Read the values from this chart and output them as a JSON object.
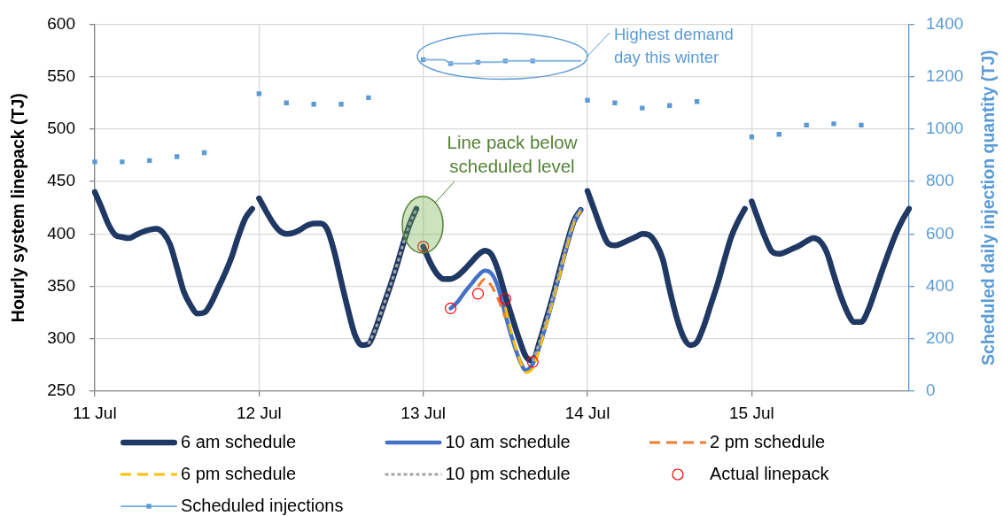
{
  "chart_data": {
    "type": "line",
    "ylabel": "Hourly system linepack (TJ)",
    "y2label": "Scheduled daily injection quantity (TJ)",
    "categories": [
      "11 Jul",
      null,
      null,
      null,
      null,
      null,
      null,
      null,
      null,
      null,
      null,
      null,
      null,
      null,
      null,
      null,
      null,
      null,
      null,
      null,
      null,
      null,
      null,
      null,
      "12 Jul",
      null,
      null,
      null,
      null,
      null,
      null,
      null,
      null,
      null,
      null,
      null,
      null,
      null,
      null,
      null,
      null,
      null,
      null,
      null,
      null,
      null,
      null,
      null,
      "13 Jul",
      null,
      null,
      null,
      null,
      null,
      null,
      null,
      null,
      null,
      null,
      null,
      null,
      null,
      null,
      null,
      null,
      null,
      null,
      null,
      null,
      null,
      null,
      null,
      "14 Jul",
      null,
      null,
      null,
      null,
      null,
      null,
      null,
      null,
      null,
      null,
      null,
      null,
      null,
      null,
      null,
      null,
      null,
      null,
      null,
      null,
      null,
      null,
      null,
      "15 Jul",
      null,
      null,
      null,
      null,
      null,
      null,
      null,
      null,
      null,
      null,
      null,
      null,
      null,
      null,
      null,
      null,
      null,
      null,
      null,
      null,
      null,
      null,
      null
    ],
    "ylim": [
      250,
      600
    ],
    "yticks": [
      250,
      300,
      350,
      400,
      450,
      500,
      550,
      600
    ],
    "y2lim": [
      0,
      1400
    ],
    "y2ticks": [
      0,
      200,
      400,
      600,
      800,
      1000,
      1200,
      1400
    ],
    "grid": true,
    "legend": "bottom",
    "annotations": [
      "Highest demand day this winter",
      "Line pack below scheduled level"
    ],
    "series": [
      {
        "name": "6 am schedule",
        "color": "#1f3864",
        "line_style": "solid",
        "values": [
          440,
          425,
          409,
          399,
          397,
          396,
          399,
          402,
          404,
          405,
          401,
          390,
          368,
          345,
          332,
          324,
          325,
          334,
          348,
          362,
          378,
          398,
          415,
          424,
          null,
          null,
          null,
          null,
          null,
          null,
          null,
          null,
          null,
          null,
          null,
          null,
          null,
          null,
          null,
          null,
          null,
          null,
          null,
          null,
          null,
          null,
          null,
          null,
          null,
          null,
          null,
          null,
          null,
          null,
          null,
          null,
          null,
          null,
          null,
          null,
          null,
          null,
          null,
          null,
          null,
          null,
          null,
          null,
          null,
          null,
          null,
          null,
          null,
          null,
          null,
          null,
          null,
          null,
          null,
          null,
          null,
          null,
          null,
          null,
          null,
          null,
          null,
          null,
          null,
          null,
          null,
          null,
          null,
          null,
          null,
          null,
          null,
          null,
          null,
          null,
          null,
          null,
          null,
          null,
          null,
          null,
          null,
          null,
          null,
          null,
          null,
          null,
          null,
          null,
          null,
          null,
          null,
          null,
          null,
          null
        ]
      },
      {
        "color": "#1f3864",
        "line_style": "solid",
        "values": [
          null,
          null,
          null,
          null,
          null,
          null,
          null,
          null,
          null,
          null,
          null,
          null,
          null,
          null,
          null,
          null,
          null,
          null,
          null,
          null,
          null,
          null,
          null,
          null,
          434,
          422,
          411,
          403,
          400,
          401,
          404,
          408,
          410,
          410,
          404,
          383,
          355,
          328,
          304,
          294,
          295,
          309,
          328,
          347,
          367,
          389,
          409,
          424,
          null,
          null,
          null,
          null,
          null,
          null,
          null,
          null,
          null,
          null,
          null,
          null,
          null,
          null,
          null,
          null,
          null,
          null,
          null,
          null,
          null,
          null,
          null,
          null,
          null,
          null,
          null,
          null,
          null,
          null,
          null,
          null,
          null,
          null,
          null,
          null,
          null,
          null,
          null,
          null,
          null,
          null,
          null,
          null,
          null,
          null,
          null,
          null,
          null,
          null,
          null,
          null,
          null,
          null,
          null,
          null,
          null,
          null,
          null,
          null,
          null,
          null,
          null,
          null,
          null,
          null,
          null,
          null,
          null,
          null,
          null,
          null
        ]
      },
      {
        "color": "#1f3864",
        "line_style": "solid",
        "values": [
          null,
          null,
          null,
          null,
          null,
          null,
          null,
          null,
          null,
          null,
          null,
          null,
          null,
          null,
          null,
          null,
          null,
          null,
          null,
          null,
          null,
          null,
          null,
          null,
          null,
          null,
          null,
          null,
          null,
          null,
          null,
          null,
          null,
          null,
          null,
          null,
          null,
          null,
          null,
          null,
          null,
          null,
          null,
          null,
          null,
          null,
          null,
          null,
          388,
          373,
          362,
          357,
          357,
          360,
          366,
          373,
          380,
          384,
          380,
          364,
          341,
          320,
          300,
          283,
          279,
          297,
          319,
          342,
          367,
          391,
          412,
          423,
          null,
          null,
          null,
          null,
          null,
          null,
          null,
          null,
          null,
          null,
          null,
          null,
          null,
          null,
          null,
          null,
          null,
          null,
          null,
          null,
          null,
          null,
          null,
          null,
          null,
          null,
          null,
          null,
          null,
          null,
          null,
          null,
          null,
          null,
          null,
          null,
          null,
          null,
          null,
          null,
          null,
          null,
          null,
          null,
          null,
          null,
          null,
          null
        ]
      },
      {
        "color": "#1f3864",
        "line_style": "solid",
        "values": [
          null,
          null,
          null,
          null,
          null,
          null,
          null,
          null,
          null,
          null,
          null,
          null,
          null,
          null,
          null,
          null,
          null,
          null,
          null,
          null,
          null,
          null,
          null,
          null,
          null,
          null,
          null,
          null,
          null,
          null,
          null,
          null,
          null,
          null,
          null,
          null,
          null,
          null,
          null,
          null,
          null,
          null,
          null,
          null,
          null,
          null,
          null,
          null,
          null,
          null,
          null,
          null,
          null,
          null,
          null,
          null,
          null,
          null,
          null,
          null,
          null,
          null,
          null,
          null,
          null,
          null,
          null,
          null,
          null,
          null,
          null,
          null,
          441,
          423,
          405,
          391,
          389,
          391,
          394,
          397,
          400,
          399,
          391,
          376,
          347,
          321,
          302,
          294,
          297,
          312,
          332,
          352,
          375,
          397,
          412,
          424,
          null,
          null,
          null,
          null,
          null,
          null,
          null,
          null,
          null,
          null,
          null,
          null,
          null,
          null,
          null,
          null,
          null,
          null,
          null,
          null,
          null,
          null,
          null,
          null
        ]
      },
      {
        "color": "#1f3864",
        "line_style": "solid",
        "values": [
          null,
          null,
          null,
          null,
          null,
          null,
          null,
          null,
          null,
          null,
          null,
          null,
          null,
          null,
          null,
          null,
          null,
          null,
          null,
          null,
          null,
          null,
          null,
          null,
          null,
          null,
          null,
          null,
          null,
          null,
          null,
          null,
          null,
          null,
          null,
          null,
          null,
          null,
          null,
          null,
          null,
          null,
          null,
          null,
          null,
          null,
          null,
          null,
          null,
          null,
          null,
          null,
          null,
          null,
          null,
          null,
          null,
          null,
          null,
          null,
          null,
          null,
          null,
          null,
          null,
          null,
          null,
          null,
          null,
          null,
          null,
          null,
          null,
          null,
          null,
          null,
          null,
          null,
          null,
          null,
          null,
          null,
          null,
          null,
          null,
          null,
          null,
          null,
          null,
          null,
          null,
          null,
          null,
          null,
          null,
          null,
          431,
          413,
          396,
          383,
          381,
          383,
          386,
          389,
          393,
          396,
          393,
          382,
          361,
          341,
          325,
          316,
          316,
          327,
          345,
          364,
          382,
          399,
          413,
          424
        ]
      },
      {
        "name": "10 am schedule",
        "color": "#4472c4",
        "line_style": "solid",
        "values": [
          null,
          null,
          null,
          null,
          null,
          null,
          null,
          null,
          null,
          null,
          null,
          null,
          null,
          null,
          null,
          null,
          null,
          null,
          null,
          null,
          null,
          null,
          null,
          null,
          null,
          null,
          null,
          null,
          null,
          null,
          null,
          null,
          null,
          null,
          null,
          null,
          null,
          null,
          null,
          null,
          null,
          null,
          null,
          null,
          null,
          null,
          null,
          null,
          null,
          null,
          null,
          null,
          329,
          335,
          344,
          352,
          360,
          365,
          362,
          348,
          323,
          300,
          281,
          270,
          276,
          293,
          315,
          339,
          363,
          389,
          411,
          423,
          null,
          null,
          null,
          null,
          null,
          null,
          null,
          null,
          null,
          null,
          null,
          null,
          null,
          null,
          null,
          null,
          null,
          null,
          null,
          null,
          null,
          null,
          null,
          null,
          null,
          null,
          null,
          null,
          null,
          null,
          null,
          null,
          null,
          null,
          null,
          null,
          null,
          null,
          null,
          null,
          null,
          null,
          null,
          null,
          null,
          null,
          null,
          null
        ]
      },
      {
        "name": "2 pm schedule",
        "color": "#ed7d31",
        "line_style": "dashed",
        "values": [
          null,
          null,
          null,
          null,
          null,
          null,
          null,
          null,
          null,
          null,
          null,
          null,
          null,
          null,
          null,
          null,
          null,
          null,
          null,
          null,
          null,
          null,
          null,
          null,
          null,
          null,
          null,
          null,
          null,
          null,
          null,
          null,
          null,
          null,
          null,
          null,
          null,
          null,
          null,
          null,
          null,
          null,
          null,
          null,
          null,
          null,
          null,
          null,
          null,
          null,
          null,
          null,
          null,
          null,
          null,
          null,
          350,
          357,
          350,
          337,
          320,
          null,
          null,
          null,
          null,
          null,
          null,
          null,
          null,
          null,
          null,
          null,
          null,
          null,
          null,
          null,
          null,
          null,
          null,
          null,
          null,
          null,
          null,
          null,
          null,
          null,
          null,
          null,
          null,
          null,
          null,
          null,
          null,
          null,
          null,
          null,
          null,
          null,
          null,
          null,
          null,
          null,
          null,
          null,
          null,
          null,
          null,
          null,
          null,
          null,
          null,
          null,
          null,
          null,
          null,
          null,
          null,
          null,
          null,
          null
        ]
      },
      {
        "name": "6 pm schedule",
        "color": "#ffc000",
        "line_style": "dashed",
        "values": [
          null,
          null,
          null,
          null,
          null,
          null,
          null,
          null,
          null,
          null,
          null,
          null,
          null,
          null,
          null,
          null,
          null,
          null,
          null,
          null,
          null,
          null,
          null,
          null,
          null,
          null,
          null,
          null,
          null,
          null,
          null,
          null,
          null,
          null,
          null,
          null,
          null,
          null,
          null,
          null,
          null,
          null,
          null,
          null,
          null,
          null,
          null,
          null,
          null,
          null,
          null,
          null,
          null,
          null,
          null,
          null,
          null,
          null,
          null,
          null,
          330,
          303,
          282,
          268,
          272,
          291,
          314,
          338,
          362,
          388,
          410,
          422,
          null,
          null,
          null,
          null,
          null,
          null,
          null,
          null,
          null,
          null,
          null,
          null,
          null,
          null,
          null,
          null,
          null,
          null,
          null,
          null,
          null,
          null,
          null,
          null,
          null,
          null,
          null,
          null,
          null,
          null,
          null,
          null,
          null,
          null,
          null,
          null,
          null,
          null,
          null,
          null,
          null,
          null,
          null,
          null,
          null,
          null,
          null,
          null
        ]
      },
      {
        "name": "10 pm schedule",
        "color": "#a5a5a5",
        "line_style": "dotted",
        "values": [
          null,
          null,
          null,
          null,
          null,
          null,
          null,
          null,
          null,
          null,
          null,
          null,
          null,
          null,
          null,
          null,
          null,
          null,
          null,
          null,
          null,
          null,
          null,
          null,
          null,
          null,
          null,
          null,
          null,
          null,
          null,
          null,
          null,
          null,
          null,
          null,
          null,
          null,
          null,
          null,
          295,
          309,
          328,
          347,
          367,
          389,
          409,
          424,
          null,
          null,
          null,
          null,
          null,
          null,
          null,
          null,
          null,
          null,
          null,
          null,
          null,
          null,
          null,
          null,
          279,
          297,
          319,
          342,
          367,
          391,
          412,
          423,
          null,
          null,
          null,
          null,
          null,
          null,
          null,
          null,
          null,
          null,
          null,
          null,
          null,
          null,
          null,
          null,
          null,
          null,
          null,
          null,
          null,
          null,
          null,
          null,
          null,
          null,
          null,
          null,
          null,
          null,
          null,
          null,
          null,
          null,
          null,
          null,
          null,
          null,
          null,
          null,
          null,
          null,
          null,
          null,
          null,
          null,
          null,
          null
        ]
      },
      {
        "name": "Actual linepack",
        "type": "scatter",
        "color": "#ff0000",
        "marker": "circle",
        "values": [
          null,
          null,
          null,
          null,
          null,
          null,
          null,
          null,
          null,
          null,
          null,
          null,
          null,
          null,
          null,
          null,
          null,
          null,
          null,
          null,
          null,
          null,
          null,
          null,
          null,
          null,
          null,
          null,
          null,
          null,
          null,
          null,
          null,
          null,
          null,
          null,
          null,
          null,
          null,
          null,
          null,
          null,
          null,
          null,
          null,
          null,
          null,
          null,
          388,
          null,
          null,
          null,
          329,
          null,
          null,
          null,
          343,
          null,
          null,
          null,
          338,
          null,
          null,
          null,
          278,
          null,
          null,
          null,
          null,
          null,
          null,
          null,
          null,
          null,
          null,
          null,
          null,
          null,
          null,
          null,
          null,
          null,
          null,
          null,
          null,
          null,
          null,
          null,
          null,
          null,
          null,
          null,
          null,
          null,
          null,
          null,
          null,
          null,
          null,
          null,
          null,
          null,
          null,
          null,
          null,
          null,
          null,
          null,
          null,
          null,
          null,
          null,
          null,
          null,
          null,
          null,
          null,
          null,
          null,
          null
        ]
      },
      {
        "name": "Scheduled injections",
        "axis": "y2",
        "color": "#5b9bd5",
        "line_style": "solid",
        "marker": "square",
        "values": [
          875,
          null,
          null,
          null,
          875,
          null,
          null,
          null,
          880,
          null,
          null,
          null,
          895,
          null,
          null,
          null,
          910,
          null,
          null,
          null,
          null,
          null,
          null,
          null,
          1135,
          null,
          null,
          null,
          1100,
          null,
          null,
          null,
          1095,
          null,
          null,
          null,
          1095,
          null,
          null,
          null,
          1120,
          null,
          null,
          null,
          null,
          null,
          null,
          null,
          1265,
          null,
          null,
          null,
          1250,
          null,
          null,
          null,
          1255,
          null,
          null,
          null,
          1260,
          null,
          null,
          null,
          1260,
          null,
          null,
          null,
          null,
          null,
          null,
          null,
          1110,
          null,
          null,
          null,
          1100,
          null,
          null,
          null,
          1080,
          null,
          null,
          null,
          1090,
          null,
          null,
          null,
          1105,
          null,
          null,
          null,
          null,
          null,
          null,
          null,
          970,
          null,
          null,
          null,
          980,
          null,
          null,
          null,
          1015,
          null,
          null,
          null,
          1020,
          null,
          null,
          null,
          1015,
          null,
          null,
          null,
          null,
          null,
          null,
          null
        ]
      },
      {
        "axis": "y2",
        "color": "#8ab6e2",
        "line_style": "solid",
        "values": [
          null,
          null,
          null,
          null,
          null,
          null,
          null,
          null,
          null,
          null,
          null,
          null,
          null,
          null,
          null,
          null,
          null,
          null,
          null,
          null,
          null,
          null,
          null,
          null,
          null,
          null,
          null,
          null,
          null,
          null,
          null,
          null,
          null,
          null,
          null,
          null,
          null,
          null,
          null,
          null,
          null,
          null,
          null,
          null,
          null,
          null,
          null,
          null,
          1265,
          1265,
          1265,
          1265,
          1250,
          1250,
          1250,
          1250,
          1255,
          1255,
          1255,
          1255,
          1260,
          1260,
          1260,
          1260,
          1260,
          1260,
          1260,
          1260,
          1260,
          1260,
          1260,
          1260,
          null,
          null,
          null,
          null,
          null,
          null,
          null,
          null,
          null,
          null,
          null,
          null,
          null,
          null,
          null,
          null,
          null,
          null,
          null,
          null,
          null,
          null,
          null,
          null,
          null,
          null,
          null,
          null,
          null,
          null,
          null,
          null,
          null,
          null,
          null,
          null,
          null,
          null,
          null,
          null,
          null,
          null,
          null,
          null,
          null,
          null,
          null,
          null
        ]
      }
    ]
  }
}
